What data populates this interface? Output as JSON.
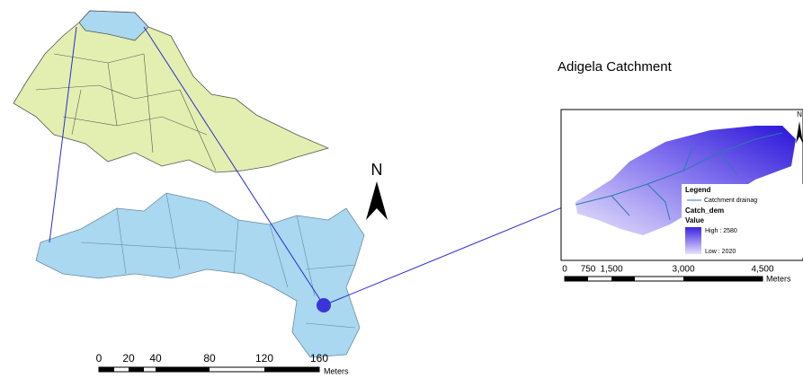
{
  "title": "Adigela Catchment",
  "north_arrows": [
    "N",
    "N"
  ],
  "main_scale": {
    "labels": [
      "0",
      "20",
      "40",
      "80",
      "120",
      "160"
    ],
    "unit": "Meters"
  },
  "inset_scale": {
    "labels": [
      "0",
      "750",
      "1,500",
      "3,000",
      "4,500"
    ],
    "unit": "Meters"
  },
  "legend": {
    "heading": "Legend",
    "line_item": "Catchment drainag",
    "layer": "Catch_dem",
    "value_heading": "Value",
    "high": "High : 2580",
    "low": "Low : 2020"
  }
}
